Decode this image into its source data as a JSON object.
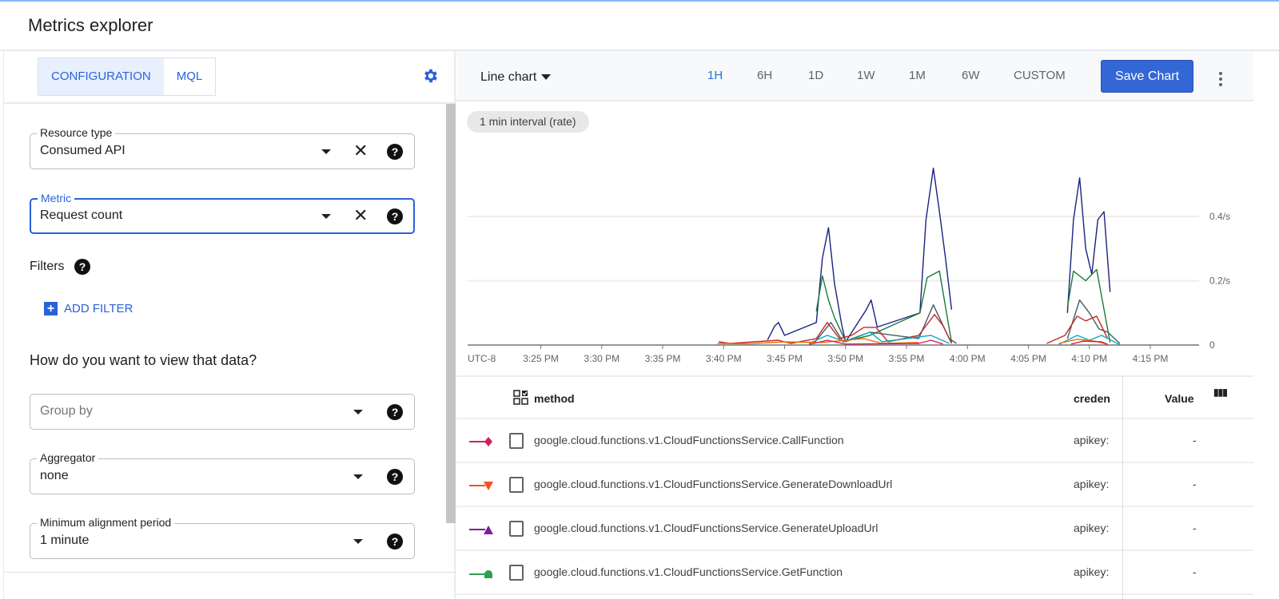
{
  "title": "Metrics explorer",
  "left": {
    "tabs": [
      {
        "label": "CONFIGURATION",
        "active": true
      },
      {
        "label": "MQL",
        "active": false
      }
    ],
    "resource_type": {
      "label": "Resource type",
      "value": "Consumed API"
    },
    "metric": {
      "label": "Metric",
      "value": "Request count"
    },
    "filters_label": "Filters",
    "add_filter": "ADD FILTER",
    "view_heading": "How do you want to view that data?",
    "group_by": {
      "placeholder": "Group by"
    },
    "aggregator": {
      "label": "Aggregator",
      "value": "none"
    },
    "alignment": {
      "label": "Minimum alignment period",
      "value": "1 minute"
    }
  },
  "toolbar": {
    "chart_type": "Line chart",
    "ranges": [
      "1H",
      "6H",
      "1D",
      "1W",
      "1M",
      "6W",
      "CUSTOM"
    ],
    "active_range": "1H",
    "save": "Save Chart"
  },
  "interval_pill": "1 min interval (rate)",
  "chart_data": {
    "type": "line",
    "timezone_label": "UTC-8",
    "x_range": [
      "3:19 PM",
      "4:19 PM"
    ],
    "x_ticks": [
      "3:25 PM",
      "3:30 PM",
      "3:35 PM",
      "3:40 PM",
      "3:45 PM",
      "3:50 PM",
      "3:55 PM",
      "4:00 PM",
      "4:05 PM",
      "4:10 PM",
      "4:15 PM"
    ],
    "y_ticks": [
      {
        "v": 0,
        "label": "0"
      },
      {
        "v": 0.2,
        "label": "0.2/s"
      },
      {
        "v": 0.4,
        "label": "0.4/s"
      }
    ],
    "ylim": [
      0,
      0.6
    ],
    "grid": true,
    "series": [
      {
        "color": "#1a237e",
        "points": [
          [
            "3:43:36",
            0.016
          ],
          [
            "3:44:12",
            0.06
          ],
          [
            "3:44:30",
            0.07
          ],
          [
            "3:45:00",
            0.03
          ],
          [
            "3:47:36",
            0.07
          ],
          [
            "3:48:06",
            0.27
          ],
          [
            "3:48:36",
            0.365
          ],
          [
            "3:49:06",
            0.19
          ],
          [
            "3:49:42",
            0.06
          ],
          [
            "3:50:00",
            0.01
          ],
          [
            "3:51:42",
            0.11
          ],
          [
            "3:52:06",
            0.14
          ],
          [
            "3:52:36",
            0.056
          ],
          [
            "3:56:06",
            0.1
          ],
          [
            "3:56:36",
            0.39
          ],
          [
            "3:57:12",
            0.55
          ],
          [
            "3:57:42",
            0.415
          ],
          [
            "3:58:12",
            0.27
          ],
          [
            "3:58:42",
            0.11
          ]
        ]
      },
      {
        "color": "#1a237e",
        "points": [
          [
            "4:08:12",
            0.1
          ],
          [
            "4:08:42",
            0.39
          ],
          [
            "4:09:12",
            0.52
          ],
          [
            "4:09:42",
            0.3
          ],
          [
            "4:10:12",
            0.22
          ],
          [
            "4:10:42",
            0.39
          ],
          [
            "4:11:12",
            0.415
          ],
          [
            "4:11:42",
            0.165
          ]
        ]
      },
      {
        "color": "#1b7a3a",
        "points": [
          [
            "3:47:36",
            0.105
          ],
          [
            "3:48:06",
            0.215
          ],
          [
            "3:48:36",
            0.14
          ],
          [
            "3:49:06",
            0.085
          ],
          [
            "3:50:00",
            0.012
          ],
          [
            "3:52:00",
            0.03
          ],
          [
            "3:56:06",
            0.1
          ],
          [
            "3:56:42",
            0.21
          ],
          [
            "3:57:42",
            0.23
          ],
          [
            "3:58:42",
            0.008
          ]
        ]
      },
      {
        "color": "#1b7a3a",
        "points": [
          [
            "4:08:12",
            0.117
          ],
          [
            "4:08:42",
            0.23
          ],
          [
            "4:09:42",
            0.2
          ],
          [
            "4:10:36",
            0.235
          ],
          [
            "4:11:42",
            0.008
          ]
        ]
      },
      {
        "color": "#455a64",
        "points": [
          [
            "3:47:30",
            0.01
          ],
          [
            "3:48:48",
            0.07
          ],
          [
            "3:49:48",
            0.01
          ],
          [
            "3:52:00",
            0.04
          ],
          [
            "3:56:00",
            0.02
          ],
          [
            "3:57:12",
            0.125
          ],
          [
            "3:58:30",
            0.02
          ],
          [
            "3:59:06",
            0.005
          ]
        ]
      },
      {
        "color": "#455a64",
        "points": [
          [
            "4:08:12",
            0.02
          ],
          [
            "4:09:12",
            0.14
          ],
          [
            "4:10:00",
            0.1
          ],
          [
            "4:10:48",
            0.05
          ],
          [
            "4:11:30",
            0.04
          ],
          [
            "4:12:30",
            0.005
          ]
        ]
      },
      {
        "color": "#c62828",
        "points": [
          [
            "3:39:36",
            0.01
          ],
          [
            "3:40:30",
            0.005
          ],
          [
            "3:44:30",
            0.015
          ],
          [
            "3:45:30",
            0.005
          ],
          [
            "3:47:36",
            0.02
          ],
          [
            "3:48:30",
            0.07
          ],
          [
            "3:49:30",
            0.02
          ],
          [
            "3:50:30",
            0.03
          ],
          [
            "3:51:30",
            0.055
          ],
          [
            "3:52:30",
            0.055
          ],
          [
            "3:53:30",
            0.01
          ],
          [
            "3:56:00",
            0.03
          ],
          [
            "3:57:18",
            0.095
          ],
          [
            "3:58:00",
            0.06
          ],
          [
            "3:58:42",
            0.005
          ]
        ]
      },
      {
        "color": "#c62828",
        "points": [
          [
            "4:06:30",
            0.005
          ],
          [
            "4:08:00",
            0.03
          ],
          [
            "4:09:00",
            0.09
          ],
          [
            "4:09:42",
            0.075
          ],
          [
            "4:10:36",
            0.09
          ],
          [
            "4:11:30",
            0.02
          ]
        ]
      },
      {
        "color": "#00acc1",
        "points": [
          [
            "3:47:00",
            0.005
          ],
          [
            "3:48:30",
            0.03
          ],
          [
            "3:50:00",
            0.01
          ],
          [
            "3:52:00",
            0.04
          ],
          [
            "3:53:00",
            0.01
          ],
          [
            "3:57:00",
            0.03
          ],
          [
            "3:58:30",
            0.005
          ]
        ]
      },
      {
        "color": "#00acc1",
        "points": [
          [
            "4:07:30",
            0.002
          ],
          [
            "4:09:00",
            0.03
          ],
          [
            "4:10:00",
            0.015
          ],
          [
            "4:11:00",
            0.03
          ],
          [
            "4:12:30",
            0.001
          ]
        ]
      },
      {
        "color": "#ef6c00",
        "points": [
          [
            "3:39:30",
            0.005
          ],
          [
            "3:42:00",
            0.004
          ],
          [
            "3:45:00",
            0.01
          ],
          [
            "3:48:00",
            0.008
          ],
          [
            "3:51:30",
            0.02
          ],
          [
            "3:53:00",
            0.005
          ],
          [
            "3:56:00",
            0.008
          ]
        ]
      },
      {
        "color": "#ef6c00",
        "points": [
          [
            "4:07:30",
            0.005
          ],
          [
            "4:09:00",
            0.018
          ],
          [
            "4:10:30",
            0.012
          ],
          [
            "4:11:30",
            0.002
          ]
        ]
      },
      {
        "color": "#d81b60",
        "points": [
          [
            "3:47:00",
            0.002
          ],
          [
            "3:48:30",
            0.015
          ],
          [
            "3:50:00",
            0.003
          ],
          [
            "3:56:00",
            0.005
          ],
          [
            "3:57:00",
            0.015
          ],
          [
            "3:58:00",
            0.003
          ]
        ]
      },
      {
        "color": "#d81b60",
        "points": [
          [
            "4:08:30",
            0.003
          ],
          [
            "4:09:30",
            0.012
          ],
          [
            "4:11:00",
            0.01
          ],
          [
            "4:11:30",
            0.002
          ]
        ]
      }
    ]
  },
  "table": {
    "headers": {
      "method": "method",
      "credential": "creden",
      "value": "Value"
    },
    "rows": [
      {
        "marker": "diamond",
        "color": "#d81b60",
        "method": "google.cloud.functions.v1.CloudFunctionsService.CallFunction",
        "credential": "apikey:",
        "value": "-"
      },
      {
        "marker": "triangle-down",
        "color": "#f4511e",
        "method": "google.cloud.functions.v1.CloudFunctionsService.GenerateDownloadUrl",
        "credential": "apikey:",
        "value": "-"
      },
      {
        "marker": "triangle-up",
        "color": "#7b1fa2",
        "method": "google.cloud.functions.v1.CloudFunctionsService.GenerateUploadUrl",
        "credential": "apikey:",
        "value": "-"
      },
      {
        "marker": "bell",
        "color": "#2e9e4f",
        "method": "google.cloud.functions.v1.CloudFunctionsService.GetFunction",
        "credential": "apikey:",
        "value": "-"
      }
    ]
  },
  "icons": {
    "gear": "gear-icon",
    "clear": "close-icon",
    "help": "help-icon",
    "dropdown": "caret-down-icon",
    "add": "plus-box-icon",
    "more": "more-vert-icon",
    "columns": "column-picker-icon",
    "select": "select-all-icon"
  }
}
